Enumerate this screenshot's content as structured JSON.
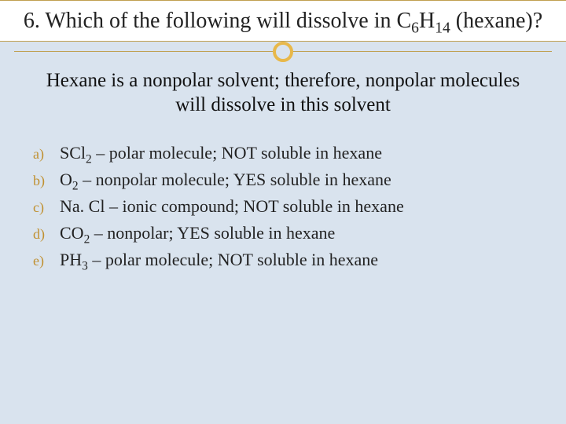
{
  "title": {
    "prefix": "6. Which of the following will dissolve in C",
    "sub1": "6",
    "mid": "H",
    "sub2": "14",
    "suffix": " (hexane)?"
  },
  "explain": "Hexane is a nonpolar solvent; therefore, nonpolar molecules will dissolve in this solvent",
  "options": [
    {
      "letter": "a)",
      "formula_pre": "SCl",
      "formula_sub": "2",
      "rest": " – polar molecule; NOT soluble in hexane"
    },
    {
      "letter": "b)",
      "formula_pre": "O",
      "formula_sub": "2",
      "rest": " – nonpolar molecule; YES soluble in hexane"
    },
    {
      "letter": "c)",
      "formula_pre": "Na. Cl",
      "formula_sub": "",
      "rest": " – ionic compound; NOT soluble in hexane"
    },
    {
      "letter": "d)",
      "formula_pre": "CO",
      "formula_sub": "2",
      "rest": " – nonpolar; YES soluble in hexane"
    },
    {
      "letter": "e)",
      "formula_pre": "PH",
      "formula_sub": "3",
      "rest": " – polar molecule; NOT soluble in hexane"
    }
  ],
  "colors": {
    "background": "#d9e3ee",
    "title_bg": "#ffffff",
    "accent_line": "#c0a050",
    "circle_border": "#e8b84a",
    "letter_color": "#c09030",
    "text_color": "#222222"
  },
  "fonts": {
    "title_size_pt": 21,
    "explain_size_pt": 19,
    "option_size_pt": 17,
    "letter_size_pt": 14
  }
}
